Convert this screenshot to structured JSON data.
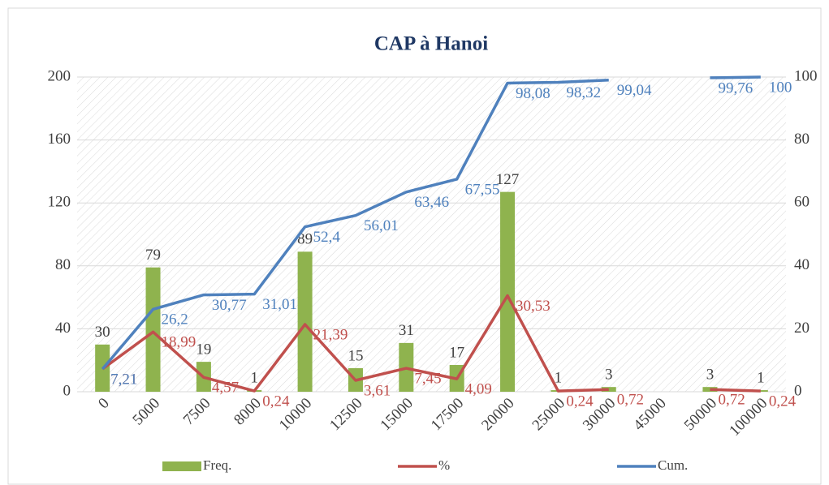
{
  "chart_data": {
    "type": "combo",
    "title": "CAP à Hanoi",
    "categories": [
      "0",
      "5000",
      "7500",
      "8000",
      "10000",
      "12500",
      "15000",
      "17500",
      "20000",
      "25000",
      "30000",
      "45000",
      "50000",
      "100000"
    ],
    "series": [
      {
        "name": "Freq.",
        "type": "bar",
        "color": "#8fb34e",
        "values": [
          30,
          79,
          19,
          1,
          89,
          15,
          31,
          17,
          127,
          1,
          3,
          null,
          3,
          1
        ]
      },
      {
        "name": "%",
        "type": "line",
        "axis": "y2",
        "color": "#c0504d",
        "values": [
          7.21,
          18.99,
          4.57,
          0.24,
          21.39,
          3.61,
          7.45,
          4.09,
          30.53,
          0.24,
          0.72,
          null,
          0.72,
          0.24
        ],
        "value_labels": [
          "7,21",
          "18,99",
          "4,57",
          "0,24",
          "21,39",
          "3,61",
          "7,45",
          "4,09",
          "30,53",
          "0,24",
          "0,72",
          null,
          "0,72",
          "0,24"
        ]
      },
      {
        "name": "Cum.",
        "type": "line",
        "axis": "y2",
        "color": "#4f81bd",
        "values": [
          7.21,
          26.2,
          30.77,
          31.01,
          52.4,
          56.01,
          63.46,
          67.55,
          98.08,
          98.32,
          99.04,
          null,
          99.76,
          100
        ],
        "value_labels": [
          "7,21",
          "26,2",
          "30,77",
          "31,01",
          "52,4",
          "56,01",
          "63,46",
          "67,55",
          "98,08",
          "98,32",
          "99,04",
          null,
          "99,76",
          "100"
        ]
      }
    ],
    "ylim": [
      0,
      200
    ],
    "yticks": [
      0,
      40,
      80,
      120,
      160,
      200
    ],
    "y2lim": [
      0,
      100
    ],
    "y2ticks": [
      0,
      20,
      40,
      60,
      80,
      100
    ],
    "grid": true,
    "legend": "bottom"
  }
}
